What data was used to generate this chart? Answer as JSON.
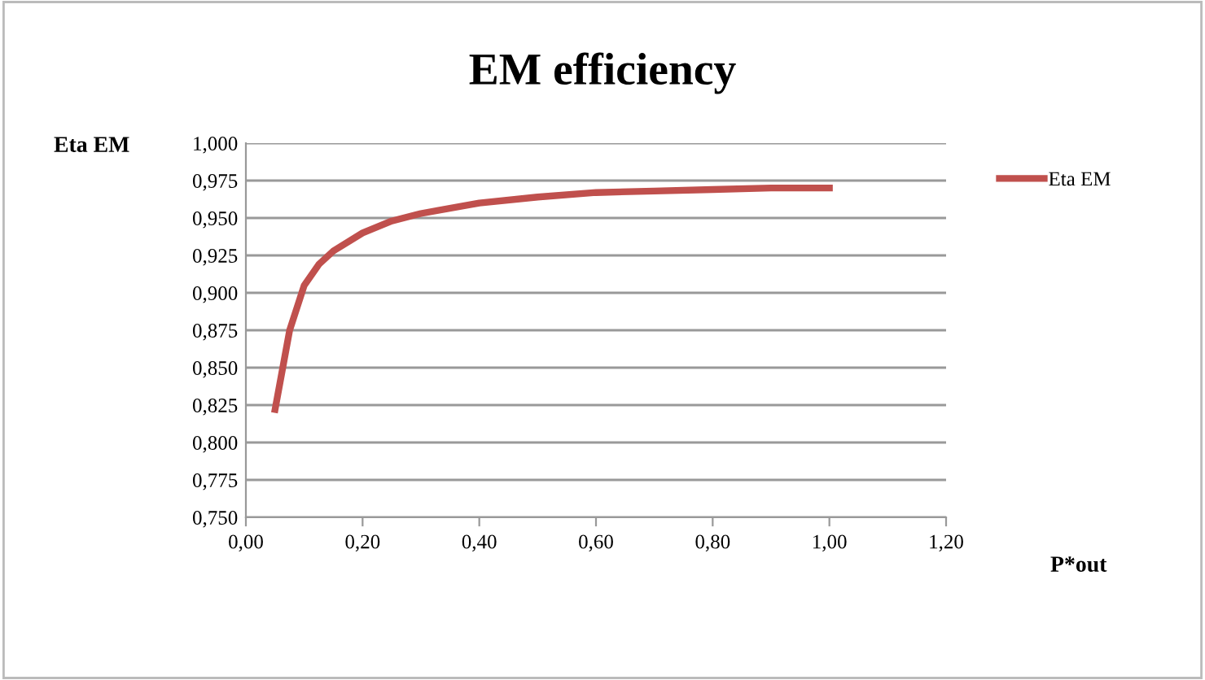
{
  "chart_data": {
    "type": "line",
    "title": "EM efficiency",
    "xlabel": "P*out",
    "ylabel": "Eta EM",
    "series": [
      {
        "name": "Eta EM",
        "color": "#c0504d",
        "x": [
          0.05,
          0.075,
          0.1,
          0.125,
          0.15,
          0.2,
          0.25,
          0.3,
          0.4,
          0.5,
          0.6,
          0.7,
          0.8,
          0.9,
          1.0
        ],
        "values": [
          0.822,
          0.875,
          0.905,
          0.919,
          0.928,
          0.94,
          0.948,
          0.953,
          0.96,
          0.964,
          0.967,
          0.968,
          0.969,
          0.97,
          0.97
        ]
      }
    ],
    "xlim": [
      0,
      1.2
    ],
    "xticks": [
      {
        "value": 0,
        "label": "0,00"
      },
      {
        "value": 0.2,
        "label": "0,20"
      },
      {
        "value": 0.4,
        "label": "0,40"
      },
      {
        "value": 0.6,
        "label": "0,60"
      },
      {
        "value": 0.8,
        "label": "0,80"
      },
      {
        "value": 1.0,
        "label": "1,00"
      },
      {
        "value": 1.2,
        "label": "1,20"
      }
    ],
    "ylim": [
      0.75,
      1.0
    ],
    "yticks": [
      {
        "value": 0.75,
        "label": "0,750"
      },
      {
        "value": 0.775,
        "label": "0,775"
      },
      {
        "value": 0.8,
        "label": "0,800"
      },
      {
        "value": 0.825,
        "label": "0,825"
      },
      {
        "value": 0.85,
        "label": "0,850"
      },
      {
        "value": 0.875,
        "label": "0,875"
      },
      {
        "value": 0.9,
        "label": "0,900"
      },
      {
        "value": 0.925,
        "label": "0,925"
      },
      {
        "value": 0.95,
        "label": "0,950"
      },
      {
        "value": 0.975,
        "label": "0,975"
      },
      {
        "value": 1.0,
        "label": "1,000"
      }
    ],
    "grid": "y",
    "legend": "right",
    "marker": "none",
    "line_style": "solid"
  }
}
